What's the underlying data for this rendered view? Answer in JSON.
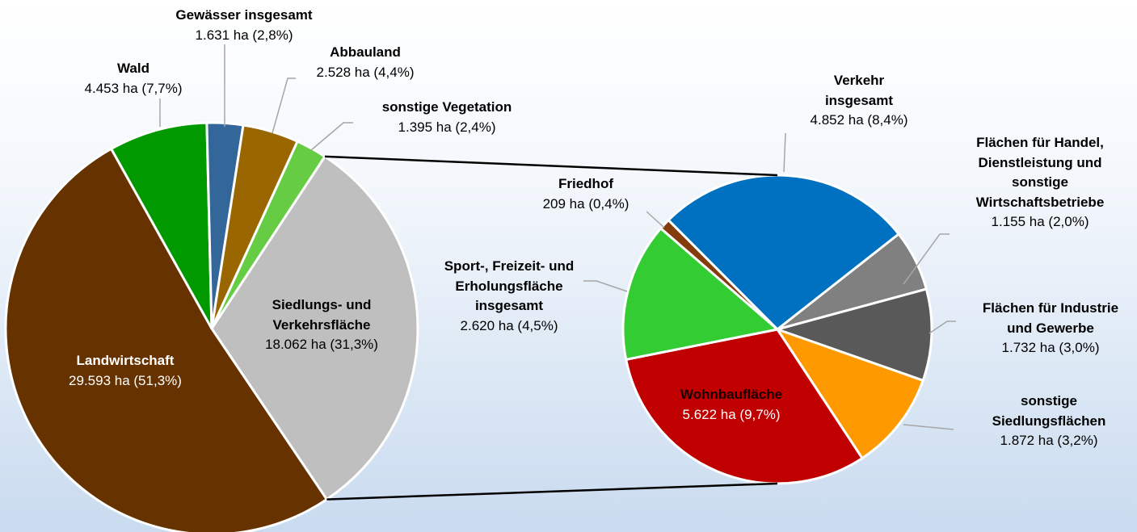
{
  "chart_data": [
    {
      "type": "pie",
      "categories": [
        "Siedlungs- und\nVerkehrsfläche",
        "Landwirtschaft",
        "Wald",
        "Gewässer insgesamt",
        "Abbauland",
        "sonstige Vegetation"
      ],
      "values": [
        18062,
        29593,
        4453,
        1631,
        2528,
        1395
      ],
      "value_labels": [
        "18.062 ha (31,3%)",
        "29.593 ha (51,3%)",
        "4.453 ha (7,7%)",
        "1.631 ha (2,8%)",
        "2.528 ha (4,4%)",
        "1.395 ha (2,4%)"
      ],
      "colors": [
        "#bfbfbf",
        "#663300",
        "#009900",
        "#336699",
        "#996600",
        "#66cc44"
      ]
    },
    {
      "type": "pie",
      "categories": [
        "Verkehr\ninsgesamt",
        "Flächen für Handel,\nDienstleistung und\nsonstige\nWirtschaftsbetriebe",
        "Flächen für Industrie\nund Gewerbe",
        "sonstige\nSiedlungsflächen",
        "Wohnbaufläche",
        "Sport-, Freizeit- und\nErholungsfläche\ninsgesamt",
        "Friedhof"
      ],
      "values": [
        4852,
        1155,
        1732,
        1872,
        5622,
        2620,
        209
      ],
      "value_labels": [
        "4.852 ha (8,4%)",
        "1.155 ha (2,0%)",
        "1.732 ha (3,0%)",
        "1.872 ha (3,2%)",
        "5.622 ha (9,7%)",
        "2.620 ha (4,5%)",
        "209 ha (0,4%)"
      ],
      "colors": [
        "#0070c0",
        "#808080",
        "#595959",
        "#ff9900",
        "#c00000",
        "#33cc33",
        "#843c0c"
      ]
    }
  ]
}
